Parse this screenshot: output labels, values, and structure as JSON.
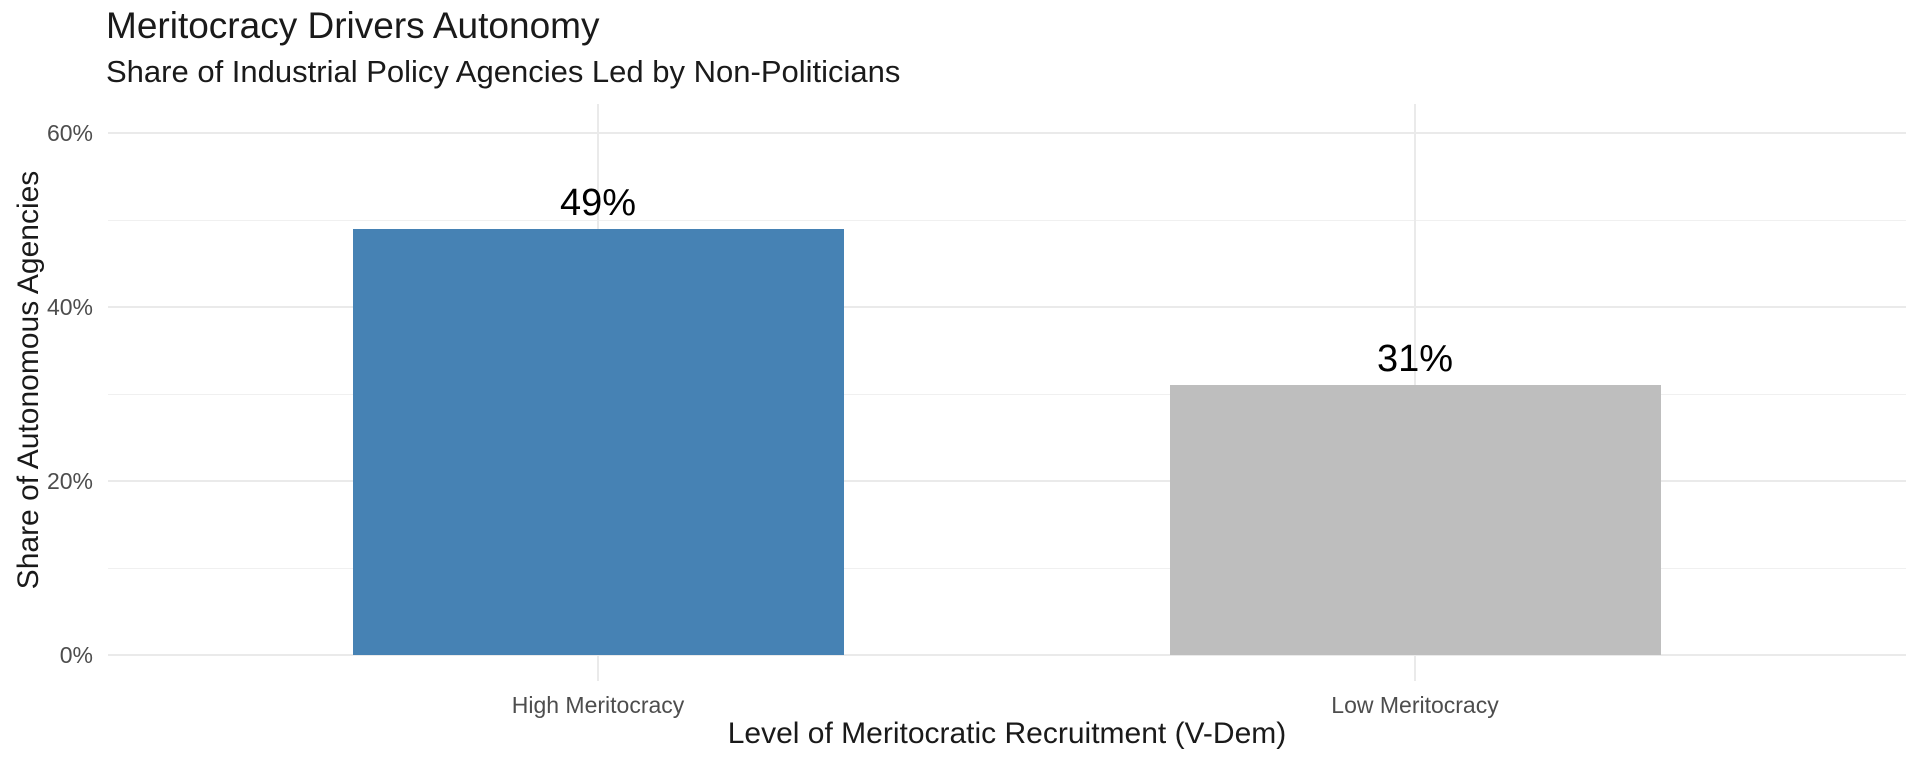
{
  "chart_data": {
    "type": "bar",
    "title": "Meritocracy Drivers Autonomy",
    "subtitle": "Share of Industrial Policy Agencies Led by Non-Politicians",
    "xlabel": "Level of Meritocratic Recruitment (V-Dem)",
    "ylabel": "Share of Autonomous Agencies",
    "categories": [
      "High Meritocracy",
      "Low Meritocracy"
    ],
    "values": [
      49,
      31
    ],
    "value_labels": [
      "49%",
      "31%"
    ],
    "bar_colors": [
      "#4682B4",
      "#BEBEBE"
    ],
    "unit": "percent",
    "ylim": [
      0,
      60
    ],
    "y_major_ticks": [
      0,
      20,
      40,
      60
    ],
    "y_tick_labels": [
      "0%",
      "20%",
      "40%",
      "60%"
    ],
    "y_minor_ticks": [
      10,
      30,
      50
    ],
    "grid": "horizontal major and minor gridlines, vertical gridline per category",
    "legend_position": "none",
    "colors": {
      "background": "#FFFFFF",
      "title_text": "#1A1A1A",
      "tick_label_text": "#4D4D4D",
      "value_label_text": "#000000",
      "grid_major": "#EAEAEA",
      "grid_minor": "#F0F0F0"
    }
  }
}
